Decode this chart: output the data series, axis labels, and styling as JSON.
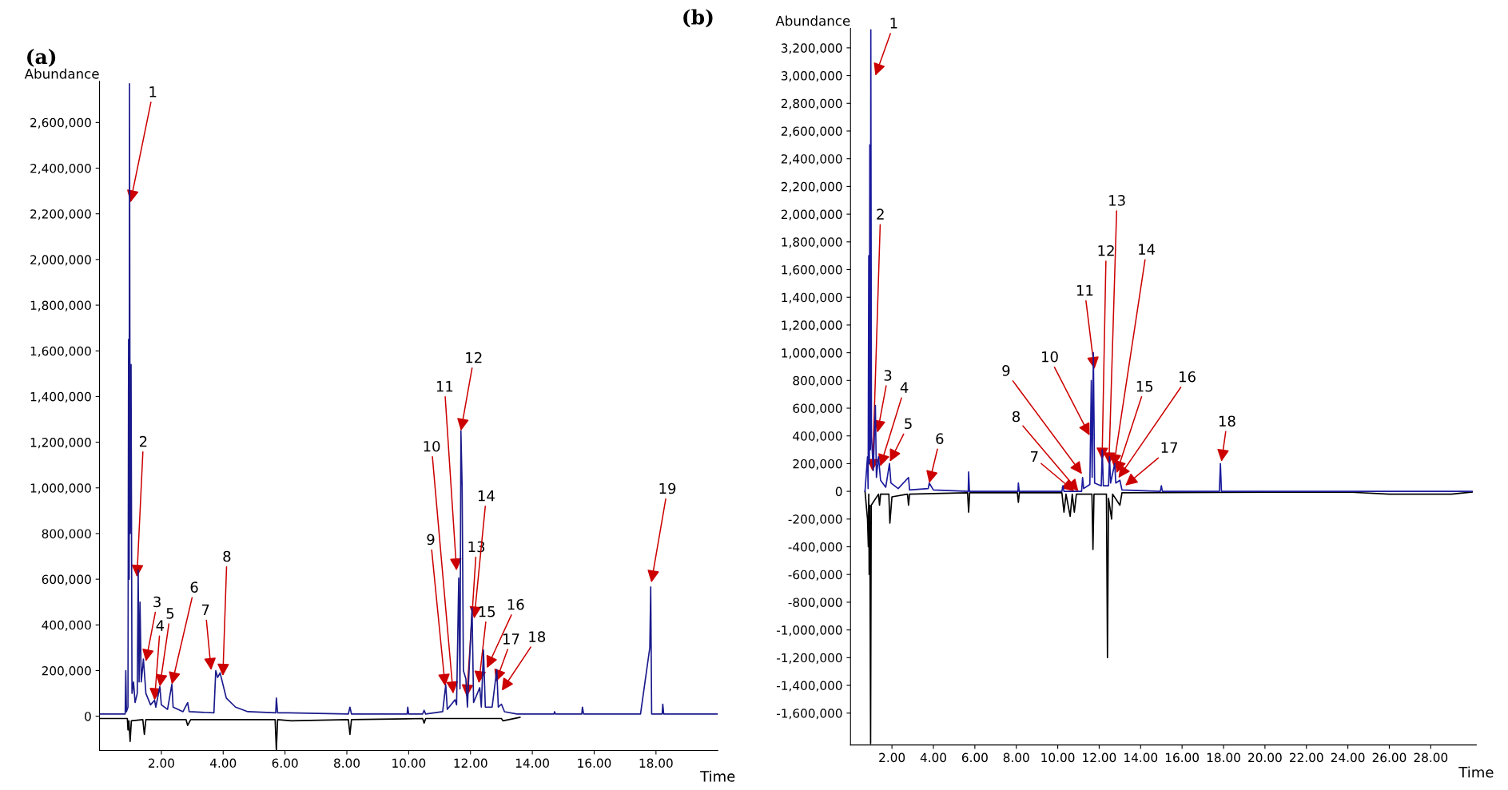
{
  "chart_data": [
    {
      "type": "line",
      "title": "(a)",
      "xlabel": "Time",
      "ylabel": "Abundance",
      "xlim": [
        0,
        20
      ],
      "ylim": [
        -150000,
        2780000
      ],
      "xticks": [
        {
          "value": 2,
          "label": "2.00"
        },
        {
          "value": 4,
          "label": "4.00"
        },
        {
          "value": 6,
          "label": "6.00"
        },
        {
          "value": 8,
          "label": "8.00"
        },
        {
          "value": 10,
          "label": "10.00"
        },
        {
          "value": 12,
          "label": "12.00"
        },
        {
          "value": 14,
          "label": "14.00"
        },
        {
          "value": 16,
          "label": "16.00"
        },
        {
          "value": 18,
          "label": "18.00"
        }
      ],
      "yticks": [
        0,
        {
          "value": 200000,
          "label": "200,000"
        },
        {
          "value": 400000,
          "label": "400,000"
        },
        {
          "value": 600000,
          "label": "600,000"
        },
        {
          "value": 800000,
          "label": "800,000"
        },
        {
          "value": 1000000,
          "label": "1,000,000"
        },
        {
          "value": 1200000,
          "label": "1,200,000"
        },
        {
          "value": 1400000,
          "label": "1,400,000"
        },
        {
          "value": 1600000,
          "label": "1,600,000"
        },
        {
          "value": 1800000,
          "label": "1,800,000"
        },
        {
          "value": 2000000,
          "label": "2,000,000"
        },
        {
          "value": 2200000,
          "label": "2,200,000"
        },
        {
          "value": 2400000,
          "label": "2,400,000"
        },
        {
          "value": 2600000,
          "label": "2,600,000"
        }
      ],
      "grid": false,
      "legend": false,
      "marker": "none",
      "line_style": "solid",
      "series": [
        {
          "color": "#000000",
          "x": [
            0.0,
            0.9,
            0.92,
            0.95,
            0.99,
            1.03,
            1.4,
            1.45,
            1.5,
            2.8,
            2.85,
            2.95,
            5.68,
            5.72,
            5.76,
            6.2,
            8.05,
            8.1,
            8.15,
            10.45,
            10.5,
            10.55,
            13.0,
            13.05,
            13.6
          ],
          "values": [
            -10000,
            -10000,
            -60000,
            -20000,
            -110000,
            -20000,
            -15000,
            -80000,
            -15000,
            -15000,
            -40000,
            -15000,
            -15000,
            -150000,
            -15000,
            -20000,
            -15000,
            -80000,
            -15000,
            -10000,
            -30000,
            -10000,
            -10000,
            -20000,
            -5000
          ]
        },
        {
          "color": "#1a1a8c",
          "x": [
            0.0,
            0.83,
            0.85,
            0.87,
            0.92,
            0.94,
            0.96,
            0.97,
            0.99,
            1.02,
            1.05,
            1.1,
            1.15,
            1.22,
            1.25,
            1.28,
            1.31,
            1.35,
            1.42,
            1.5,
            1.65,
            1.78,
            1.82,
            1.95,
            2.0,
            2.2,
            2.34,
            2.38,
            2.7,
            2.85,
            2.9,
            3.7,
            3.76,
            3.82,
            3.9,
            4.1,
            4.4,
            4.8,
            5.7,
            5.72,
            5.76,
            6.1,
            8.05,
            8.1,
            8.15,
            9.95,
            9.97,
            10.0,
            10.45,
            10.5,
            10.55,
            11.1,
            11.2,
            11.25,
            11.5,
            11.55,
            11.62,
            11.66,
            11.69,
            11.73,
            11.77,
            11.85,
            11.9,
            12.05,
            12.1,
            12.3,
            12.35,
            12.42,
            12.48,
            12.7,
            12.85,
            12.9,
            13.0,
            13.1,
            13.5,
            14.7,
            14.72,
            14.75,
            15.6,
            15.62,
            15.66,
            17.5,
            17.8,
            17.83,
            17.86,
            18.2,
            18.22,
            18.25,
            20.0
          ],
          "values": [
            10000,
            10000,
            200000,
            20000,
            40000,
            1650000,
            600000,
            2770000,
            800000,
            1540000,
            100000,
            150000,
            60000,
            100000,
            640000,
            150000,
            500000,
            150000,
            250000,
            100000,
            50000,
            70000,
            40000,
            130000,
            50000,
            30000,
            140000,
            40000,
            20000,
            60000,
            20000,
            15000,
            200000,
            170000,
            190000,
            80000,
            40000,
            20000,
            15000,
            80000,
            15000,
            15000,
            10000,
            40000,
            10000,
            10000,
            40000,
            10000,
            10000,
            26000,
            10000,
            20000,
            138000,
            30000,
            72000,
            50000,
            605000,
            120000,
            1250000,
            1000000,
            200000,
            164000,
            40000,
            474000,
            60000,
            125000,
            40000,
            290000,
            40000,
            40000,
            204000,
            40000,
            53000,
            20000,
            10000,
            10000,
            20000,
            10000,
            10000,
            40000,
            10000,
            10000,
            300000,
            566000,
            10000,
            10000,
            53000,
            10000,
            10000
          ]
        }
      ],
      "annotations": [
        {
          "text": "1",
          "x": 1.0,
          "y": 2250000
        },
        {
          "text": "2",
          "x": 1.21,
          "y": 610000
        },
        {
          "text": "3",
          "x": 1.5,
          "y": 240000
        },
        {
          "text": "4",
          "x": 1.78,
          "y": 70000
        },
        {
          "text": "5",
          "x": 1.95,
          "y": 130000
        },
        {
          "text": "6",
          "x": 2.34,
          "y": 140000
        },
        {
          "text": "7",
          "x": 3.61,
          "y": 202000
        },
        {
          "text": "8",
          "x": 3.99,
          "y": 177000
        },
        {
          "text": "9",
          "x": 11.18,
          "y": 132000
        },
        {
          "text": "10",
          "x": 11.44,
          "y": 99000
        },
        {
          "text": "11",
          "x": 11.55,
          "y": 638000
        },
        {
          "text": "12",
          "x": 11.69,
          "y": 1250000
        },
        {
          "text": "13",
          "x": 11.88,
          "y": 86000
        },
        {
          "text": "14",
          "x": 12.12,
          "y": 428000
        },
        {
          "text": "15",
          "x": 12.27,
          "y": 145000
        },
        {
          "text": "16",
          "x": 12.53,
          "y": 211000
        },
        {
          "text": "17",
          "x": 12.82,
          "y": 151000
        },
        {
          "text": "18",
          "x": 13.01,
          "y": 112000
        },
        {
          "text": "19",
          "x": 17.85,
          "y": 586000
        }
      ]
    },
    {
      "type": "line",
      "title": "(b)",
      "xlabel": "Time",
      "ylabel": "Abundance",
      "xlim": [
        0,
        30.2
      ],
      "ylim": [
        -1830000,
        3340000
      ],
      "xticks": [
        {
          "value": 2,
          "label": "2.00"
        },
        {
          "value": 4,
          "label": "4.00"
        },
        {
          "value": 6,
          "label": "6.00"
        },
        {
          "value": 8,
          "label": "8.00"
        },
        {
          "value": 10,
          "label": "10.00"
        },
        {
          "value": 12,
          "label": "12.00"
        },
        {
          "value": 14,
          "label": "14.00"
        },
        {
          "value": 16,
          "label": "16.00"
        },
        {
          "value": 18,
          "label": "18.00"
        },
        {
          "value": 20,
          "label": "20.00"
        },
        {
          "value": 22,
          "label": "22.00"
        },
        {
          "value": 24,
          "label": "24.00"
        },
        {
          "value": 26,
          "label": "26.00"
        },
        {
          "value": 28,
          "label": "28.00"
        }
      ],
      "yticks": [
        {
          "value": -1600000,
          "label": "-1,600,000"
        },
        {
          "value": -1400000,
          "label": "-1,400,000"
        },
        {
          "value": -1200000,
          "label": "-1,200,000"
        },
        {
          "value": -1000000,
          "label": "-1,000,000"
        },
        {
          "value": -800000,
          "label": "-800,000"
        },
        {
          "value": -600000,
          "label": "-600,000"
        },
        {
          "value": -400000,
          "label": "-400,000"
        },
        {
          "value": -200000,
          "label": "-200,000"
        },
        0,
        {
          "value": 200000,
          "label": "200,000"
        },
        {
          "value": 400000,
          "label": "400,000"
        },
        {
          "value": 600000,
          "label": "600,000"
        },
        {
          "value": 800000,
          "label": "800,000"
        },
        {
          "value": 1000000,
          "label": "1,000,000"
        },
        {
          "value": 1200000,
          "label": "1,200,000"
        },
        {
          "value": 1400000,
          "label": "1,400,000"
        },
        {
          "value": 1600000,
          "label": "1,600,000"
        },
        {
          "value": 1800000,
          "label": "1,800,000"
        },
        {
          "value": 2000000,
          "label": "2,000,000"
        },
        {
          "value": 2200000,
          "label": "2,200,000"
        },
        {
          "value": 2400000,
          "label": "2,400,000"
        },
        {
          "value": 2600000,
          "label": "2,600,000"
        },
        {
          "value": 2800000,
          "label": "2,800,000"
        },
        {
          "value": 3000000,
          "label": "3,000,000"
        },
        {
          "value": 3200000,
          "label": "3,200,000"
        }
      ],
      "grid": false,
      "legend": false,
      "marker": "none",
      "line_style": "solid",
      "series": [
        {
          "color": "#000000",
          "x": [
            0.7,
            0.82,
            0.86,
            0.88,
            0.9,
            0.93,
            0.97,
            1.0,
            1.35,
            1.4,
            1.45,
            1.85,
            1.9,
            2.0,
            2.75,
            2.8,
            2.85,
            5.65,
            5.7,
            5.75,
            8.05,
            8.1,
            8.15,
            10.2,
            10.3,
            10.4,
            10.6,
            10.7,
            10.8,
            10.9,
            11.65,
            11.7,
            11.75,
            12.35,
            12.4,
            12.45,
            12.6,
            12.65,
            13.0,
            13.1,
            24.0,
            26.0,
            29.0,
            30.0
          ],
          "values": [
            0,
            -200000,
            -400000,
            -20000,
            -600000,
            -100000,
            -1820000,
            -100000,
            -20000,
            -100000,
            -20000,
            -20000,
            -230000,
            -40000,
            -20000,
            -100000,
            -20000,
            -10000,
            -150000,
            -10000,
            -10000,
            -80000,
            -10000,
            -10000,
            -150000,
            -20000,
            -180000,
            -20000,
            -150000,
            -20000,
            -20000,
            -420000,
            -20000,
            -20000,
            -1200000,
            -50000,
            -200000,
            -20000,
            -100000,
            -10000,
            -5000,
            -20000,
            -20000,
            -5000
          ]
        },
        {
          "color": "#1a1a9c",
          "x": [
            0.7,
            0.82,
            0.85,
            0.88,
            0.91,
            0.93,
            0.96,
            0.98,
            1.01,
            1.1,
            1.2,
            1.25,
            1.35,
            1.45,
            1.7,
            1.88,
            1.95,
            2.3,
            2.8,
            2.85,
            3.75,
            3.8,
            4.0,
            5.68,
            5.7,
            5.74,
            8.08,
            8.1,
            8.14,
            10.2,
            10.25,
            10.3,
            11.15,
            11.2,
            11.25,
            11.55,
            11.62,
            11.66,
            11.72,
            11.78,
            12.1,
            12.15,
            12.2,
            12.45,
            12.5,
            12.55,
            12.75,
            12.8,
            13.0,
            13.1,
            14.95,
            15.0,
            15.05,
            17.8,
            17.85,
            17.9,
            30.0
          ],
          "values": [
            0,
            250000,
            20000,
            1700000,
            200000,
            2500000,
            300000,
            3330000,
            400000,
            150000,
            620000,
            100000,
            250000,
            80000,
            30000,
            200000,
            60000,
            20000,
            100000,
            10000,
            20000,
            60000,
            10000,
            0,
            140000,
            0,
            0,
            60000,
            0,
            0,
            40000,
            0,
            0,
            100000,
            20000,
            50000,
            800000,
            100000,
            1000000,
            60000,
            40000,
            300000,
            40000,
            40000,
            250000,
            60000,
            200000,
            60000,
            80000,
            10000,
            0,
            40000,
            0,
            0,
            200000,
            0,
            0
          ]
        }
      ],
      "annotations": [
        {
          "text": "1",
          "x": 1.2,
          "y": 3000000
        },
        {
          "text": "2",
          "x": 1.06,
          "y": 146000
        },
        {
          "text": "3",
          "x": 1.3,
          "y": 424000
        },
        {
          "text": "4",
          "x": 1.44,
          "y": 181000
        },
        {
          "text": "5",
          "x": 1.9,
          "y": 215000
        },
        {
          "text": "6",
          "x": 3.8,
          "y": 60000
        },
        {
          "text": "7",
          "x": 10.8,
          "y": 0
        },
        {
          "text": "8",
          "x": 11.0,
          "y": 0
        },
        {
          "text": "9",
          "x": 11.17,
          "y": 125000
        },
        {
          "text": "10",
          "x": 11.54,
          "y": 403000
        },
        {
          "text": "11",
          "x": 11.77,
          "y": 882000
        },
        {
          "text": "12",
          "x": 12.14,
          "y": 229000
        },
        {
          "text": "13",
          "x": 12.47,
          "y": 194000
        },
        {
          "text": "14",
          "x": 12.7,
          "y": 181000
        },
        {
          "text": "15",
          "x": 12.84,
          "y": 132000
        },
        {
          "text": "16",
          "x": 12.93,
          "y": 97000
        },
        {
          "text": "17",
          "x": 13.26,
          "y": 42000
        },
        {
          "text": "18",
          "x": 17.9,
          "y": 215000
        }
      ]
    }
  ]
}
